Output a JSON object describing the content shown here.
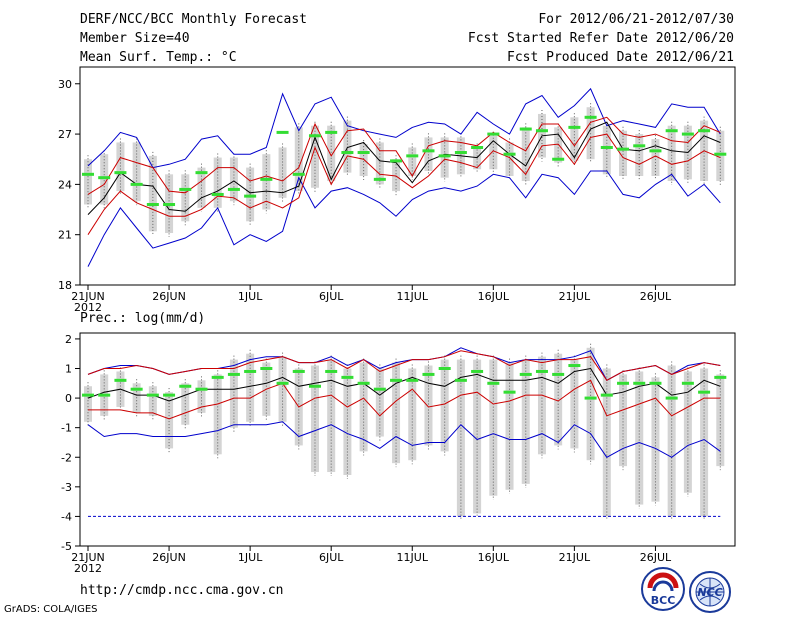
{
  "header": {
    "left": [
      "DERF/NCC/BCC Monthly Forecast",
      "Member Size=40",
      "Mean Surf. Temp.: °C"
    ],
    "right": [
      "For 2012/06/21-2012/07/30",
      "Fcst Started Refer Date 2012/06/20",
      "Fcst Produced Date 2012/06/21"
    ]
  },
  "footer": {
    "url": "http://cmdp.ncc.cma.gov.cn",
    "credit": "GrADS: COLA/IGES"
  },
  "logos": {
    "bcc": "BCC",
    "ncc": "NCC"
  },
  "colors": {
    "box": "#d4d4d4",
    "mean": "#000000",
    "std": "#cc0000",
    "extreme": "#0000cc",
    "median": "#33dd33",
    "dotted": "#606060"
  },
  "chart_data": [
    {
      "type": "line",
      "title": "Mean Surf. Temp.: °C",
      "xlabel": "",
      "ylabel": "",
      "days": 40,
      "xticks": [
        {
          "day": 1,
          "label": "21JUN",
          "sub": "2012"
        },
        {
          "day": 6,
          "label": "26JUN"
        },
        {
          "day": 11,
          "label": "1JUL"
        },
        {
          "day": 16,
          "label": "6JUL"
        },
        {
          "day": 21,
          "label": "11JUL"
        },
        {
          "day": 26,
          "label": "16JUL"
        },
        {
          "day": 31,
          "label": "21JUL"
        },
        {
          "day": 36,
          "label": "26JUL"
        }
      ],
      "ylim": [
        18,
        31
      ],
      "yticks": [
        18,
        21,
        24,
        27,
        30
      ],
      "series": {
        "mean": [
          22.2,
          23.2,
          24.7,
          24.0,
          23.9,
          22.5,
          22.4,
          23.2,
          23.6,
          24.2,
          23.5,
          23.6,
          23.5,
          23.9,
          26.8,
          24.3,
          26.2,
          26.5,
          25.4,
          25.3,
          24.1,
          25.4,
          25.8,
          25.7,
          25.6,
          26.6,
          25.8,
          25.1,
          26.9,
          27.0,
          25.6,
          27.3,
          27.7,
          26.1,
          26.0,
          26.3,
          26.0,
          25.9,
          26.9,
          26.5
        ],
        "upper_std": [
          23.4,
          24.0,
          25.6,
          25.3,
          25.0,
          23.6,
          23.5,
          24.2,
          25.0,
          25.0,
          24.2,
          24.5,
          24.2,
          25.0,
          27.6,
          25.7,
          27.2,
          27.3,
          26.0,
          26.0,
          24.5,
          26.3,
          26.6,
          26.5,
          26.3,
          27.1,
          26.5,
          26.0,
          27.6,
          27.6,
          26.3,
          27.7,
          28.0,
          27.0,
          26.8,
          27.0,
          26.6,
          26.5,
          27.5,
          27.1
        ],
        "lower_std": [
          21.0,
          22.5,
          23.6,
          22.9,
          22.5,
          22.1,
          22.1,
          22.5,
          23.3,
          23.2,
          22.6,
          23.0,
          22.6,
          23.2,
          26.2,
          24.0,
          25.7,
          25.5,
          24.6,
          24.5,
          23.8,
          24.5,
          25.5,
          25.3,
          25.0,
          26.0,
          25.6,
          24.6,
          26.3,
          26.4,
          25.2,
          26.8,
          27.0,
          25.6,
          25.2,
          25.7,
          25.2,
          25.4,
          26.0,
          25.6
        ],
        "max": [
          25.1,
          26.0,
          27.1,
          26.8,
          25.0,
          25.2,
          25.5,
          26.7,
          26.9,
          25.8,
          25.8,
          26.2,
          29.4,
          27.2,
          28.8,
          29.2,
          27.5,
          27.2,
          27.0,
          26.8,
          27.4,
          27.7,
          27.6,
          27.0,
          28.3,
          27.6,
          27.0,
          28.8,
          29.3,
          28.0,
          28.7,
          29.7,
          27.5,
          27.8,
          27.6,
          27.4,
          28.8,
          28.6,
          28.6,
          27.0
        ],
        "min": [
          19.1,
          21.0,
          22.6,
          21.4,
          20.2,
          20.5,
          20.8,
          21.4,
          22.6,
          20.4,
          21.0,
          20.6,
          21.2,
          24.4,
          22.6,
          23.6,
          23.8,
          23.4,
          22.9,
          22.1,
          23.1,
          23.6,
          23.8,
          23.6,
          23.9,
          24.6,
          24.4,
          23.2,
          24.6,
          24.4,
          23.4,
          24.8,
          24.8,
          23.4,
          23.2,
          24.0,
          24.6,
          23.3,
          24.0,
          22.9
        ],
        "box_hi": [
          25.5,
          25.8,
          26.5,
          26.5,
          25.7,
          24.6,
          24.6,
          25.0,
          25.6,
          25.6,
          25.0,
          25.8,
          26.2,
          27.4,
          27.5,
          27.5,
          27.8,
          26.4,
          26.5,
          25.5,
          26.2,
          26.8,
          26.8,
          26.8,
          26.2,
          26.9,
          26.5,
          27.4,
          28.2,
          27.4,
          28.0,
          28.6,
          27.5,
          27.2,
          27.0,
          26.7,
          27.5,
          27.5,
          27.8,
          27.2
        ],
        "box_lo": [
          22.8,
          22.8,
          23.6,
          23.0,
          21.2,
          21.1,
          21.8,
          22.6,
          22.6,
          23.0,
          21.8,
          22.5,
          23.2,
          23.6,
          23.8,
          24.2,
          24.7,
          24.5,
          24.0,
          23.6,
          24.5,
          24.8,
          24.4,
          24.6,
          24.9,
          24.9,
          24.5,
          24.2,
          25.6,
          25.3,
          25.4,
          25.5,
          24.6,
          24.5,
          24.5,
          24.5,
          24.2,
          24.3,
          24.2,
          24.2
        ],
        "median": [
          24.6,
          24.4,
          24.7,
          24.0,
          22.8,
          22.8,
          23.7,
          24.7,
          23.4,
          23.7,
          23.3,
          24.3,
          27.1,
          24.6,
          26.9,
          27.1,
          25.9,
          25.9,
          24.3,
          25.4,
          25.7,
          26.0,
          25.7,
          25.9,
          26.2,
          27.0,
          25.8,
          27.3,
          27.2,
          25.5,
          27.4,
          28.0,
          26.2,
          26.1,
          26.3,
          26.0,
          27.2,
          27.0,
          27.2,
          25.8
        ]
      }
    },
    {
      "type": "line",
      "title": "Prec.: log(mm/d)",
      "xlabel": "",
      "ylabel": "",
      "days": 40,
      "xticks": [
        {
          "day": 1,
          "label": "21JUN",
          "sub": "2012"
        },
        {
          "day": 6,
          "label": "26JUN"
        },
        {
          "day": 11,
          "label": "1JUL"
        },
        {
          "day": 16,
          "label": "6JUL"
        },
        {
          "day": 21,
          "label": "11JUL"
        },
        {
          "day": 26,
          "label": "16JUL"
        },
        {
          "day": 31,
          "label": "21JUL"
        },
        {
          "day": 36,
          "label": "26JUL"
        }
      ],
      "ylim": [
        -5,
        2.2
      ],
      "yticks": [
        -5,
        -4,
        -3,
        -2,
        -1,
        0,
        1,
        2
      ],
      "reference_line": -4,
      "series": {
        "mean": [
          0.0,
          0.2,
          0.3,
          0.1,
          0.1,
          -0.1,
          0.1,
          0.3,
          0.3,
          0.3,
          0.4,
          0.5,
          0.7,
          0.4,
          0.5,
          0.6,
          0.4,
          0.5,
          0.1,
          0.5,
          0.7,
          0.5,
          0.4,
          0.7,
          0.8,
          0.6,
          0.6,
          0.6,
          0.7,
          0.5,
          0.9,
          1.0,
          0.1,
          0.2,
          0.4,
          0.5,
          0.1,
          0.2,
          0.6,
          0.4
        ],
        "upper_std": [
          0.8,
          1.0,
          1.0,
          1.1,
          1.0,
          0.8,
          0.9,
          1.0,
          1.0,
          1.0,
          1.2,
          1.3,
          1.4,
          1.2,
          1.2,
          1.3,
          1.0,
          1.3,
          0.9,
          1.1,
          1.3,
          1.3,
          1.4,
          1.6,
          1.5,
          1.4,
          1.1,
          1.3,
          1.2,
          1.3,
          1.3,
          1.4,
          0.6,
          0.9,
          1.0,
          1.1,
          0.8,
          1.0,
          1.2,
          1.1
        ],
        "lower_std": [
          -0.4,
          -0.4,
          -0.4,
          -0.5,
          -0.5,
          -0.7,
          -0.5,
          -0.3,
          -0.2,
          0.0,
          0.0,
          0.3,
          0.5,
          -0.3,
          0.0,
          0.1,
          -0.3,
          0.0,
          -0.6,
          -0.1,
          0.3,
          -0.3,
          -0.2,
          0.1,
          0.2,
          -0.2,
          -0.1,
          0.1,
          0.1,
          -0.1,
          0.3,
          0.6,
          -0.6,
          -0.4,
          -0.2,
          0.0,
          -0.6,
          -0.3,
          0.0,
          0.0
        ],
        "max": [
          0.8,
          1.0,
          1.1,
          1.1,
          1.0,
          0.8,
          0.9,
          1.0,
          1.0,
          1.1,
          1.3,
          1.4,
          1.4,
          1.2,
          1.2,
          1.4,
          1.1,
          1.3,
          1.0,
          1.2,
          1.3,
          1.3,
          1.4,
          1.7,
          1.5,
          1.4,
          1.2,
          1.3,
          1.3,
          1.3,
          1.4,
          1.6,
          0.6,
          0.9,
          1.0,
          1.1,
          0.8,
          1.1,
          1.2,
          1.1
        ],
        "min": [
          -0.9,
          -1.3,
          -1.2,
          -1.2,
          -1.3,
          -1.3,
          -1.3,
          -1.2,
          -1.1,
          -0.9,
          -0.9,
          -0.9,
          -0.8,
          -1.3,
          -1.1,
          -0.9,
          -1.2,
          -1.4,
          -1.7,
          -1.3,
          -1.6,
          -1.5,
          -1.5,
          -0.9,
          -1.4,
          -1.2,
          -1.4,
          -1.4,
          -1.2,
          -1.5,
          -0.9,
          -1.2,
          -2.0,
          -1.7,
          -1.5,
          -1.7,
          -2.0,
          -1.6,
          -1.4,
          -1.8
        ],
        "box_hi": [
          0.4,
          0.8,
          0.9,
          0.5,
          0.4,
          0.2,
          0.5,
          0.6,
          0.8,
          1.3,
          1.5,
          1.2,
          1.4,
          1.0,
          1.1,
          1.3,
          1.0,
          1.2,
          1.0,
          1.2,
          1.0,
          1.1,
          1.3,
          1.3,
          1.3,
          1.3,
          1.2,
          1.3,
          1.4,
          1.5,
          1.3,
          1.7,
          1.0,
          0.8,
          0.9,
          0.7,
          1.1,
          0.9,
          1.0,
          0.8
        ],
        "box_lo": [
          -0.8,
          -0.6,
          -0.3,
          -0.5,
          -0.6,
          -1.7,
          -0.9,
          -0.5,
          -1.9,
          -1.0,
          -0.8,
          -0.6,
          -0.8,
          -1.6,
          -2.5,
          -2.5,
          -2.6,
          -1.8,
          -1.3,
          -2.2,
          -2.1,
          -1.6,
          -1.8,
          -4.0,
          -3.9,
          -3.3,
          -3.1,
          -2.9,
          -1.9,
          -1.6,
          -1.7,
          -2.1,
          -4.0,
          -2.3,
          -3.6,
          -3.5,
          -4.0,
          -3.2,
          -4.0,
          -2.3
        ],
        "median": [
          0.1,
          0.1,
          0.6,
          0.3,
          0.1,
          0.1,
          0.4,
          0.3,
          0.7,
          0.8,
          0.9,
          1.0,
          0.5,
          0.9,
          0.4,
          0.9,
          0.7,
          0.5,
          0.3,
          0.6,
          0.6,
          0.8,
          1.0,
          0.6,
          0.9,
          0.5,
          0.2,
          0.8,
          0.9,
          0.8,
          1.1,
          0.0,
          0.1,
          0.5,
          0.5,
          0.5,
          0.0,
          0.5,
          0.2,
          0.7
        ]
      }
    }
  ]
}
